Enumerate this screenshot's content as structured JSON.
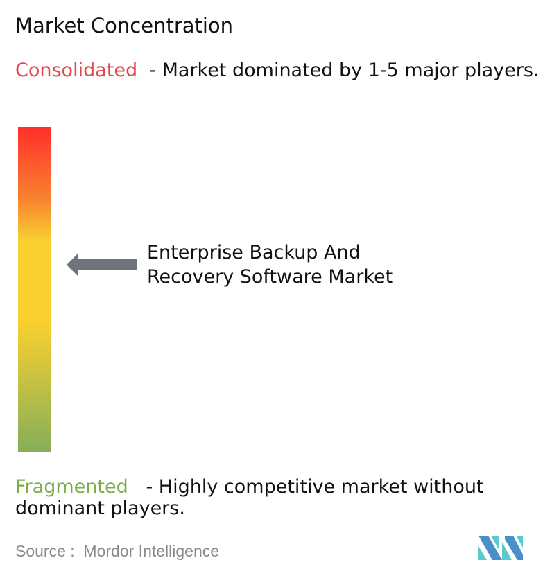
{
  "title": "Market Concentration",
  "consolidated": {
    "label": "Consolidated",
    "description": "  - Market dominated by 1-5 major players.",
    "color": "#e0474c"
  },
  "fragmented": {
    "label": "Fragmented",
    "description": "   - Highly competitive market without dominant players.",
    "color": "#7aad4a"
  },
  "scale": {
    "top_color": "#ff2e2a",
    "middle_color": "#f8d030",
    "bottom_color": "#86ae56",
    "indicator_position": "upper-middle",
    "indicator_icon": "left-arrow-icon"
  },
  "market": {
    "line1": "Enterprise Backup And",
    "line2": "Recovery Software Market"
  },
  "source": "Source :  Mordor Intelligence",
  "logo": {
    "text": "Mordor Intelligence",
    "colors": [
      "#4a90c8",
      "#5cc8d0"
    ]
  }
}
